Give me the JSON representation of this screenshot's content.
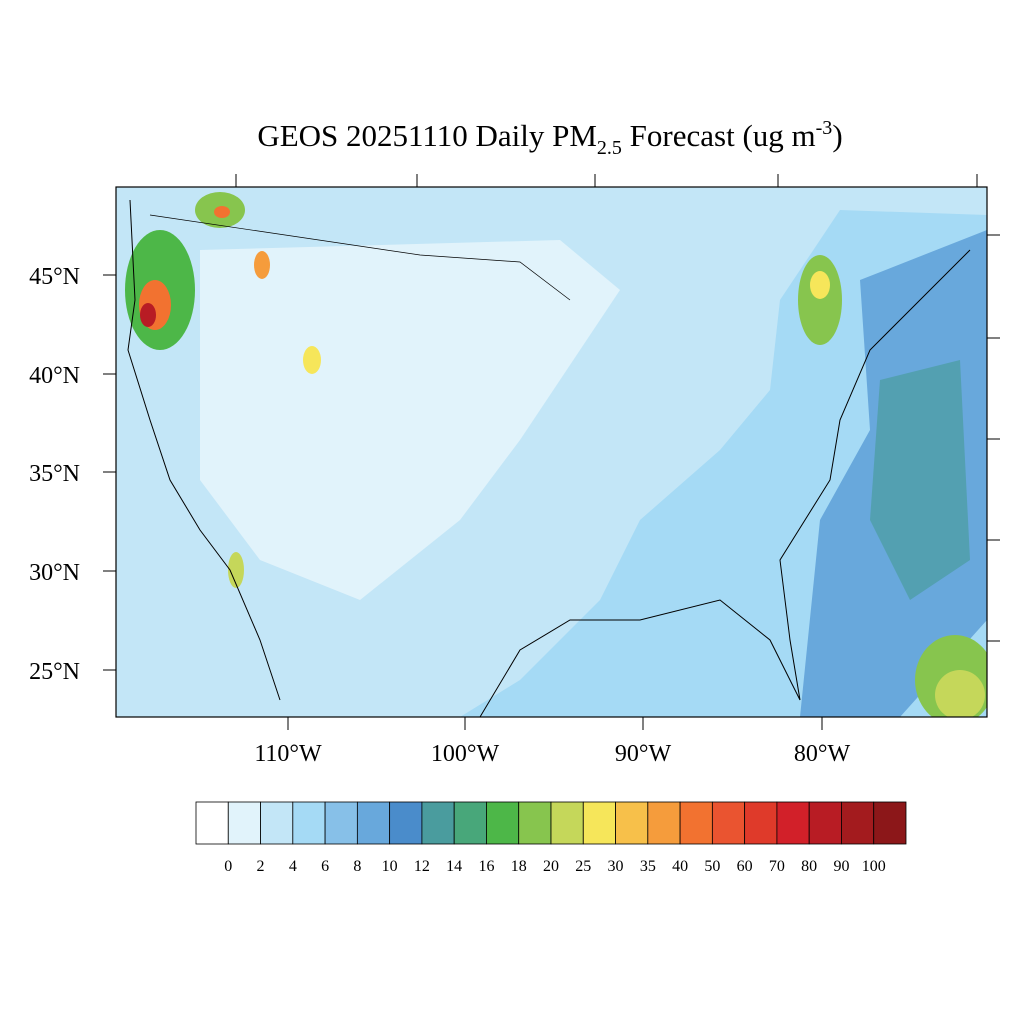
{
  "title": {
    "main": "GEOS 20251110 Daily PM",
    "sub": "2.5",
    "rest": " Forecast (ug m",
    "sup": "-3",
    "end": ")"
  },
  "lat_labels": [
    "45°N",
    "40°N",
    "35°N",
    "30°N",
    "25°N"
  ],
  "lon_labels": [
    "110°W",
    "100°W",
    "90°W",
    "80°W"
  ],
  "colorbar": {
    "colors": [
      "#ffffff",
      "#e1f3fb",
      "#c3e6f7",
      "#a5daf5",
      "#87c0e8",
      "#68a8dc",
      "#4a8ccb",
      "#4a9c9e",
      "#48a77a",
      "#4db748",
      "#87c54e",
      "#c5d75a",
      "#f6e65a",
      "#f7c04a",
      "#f59c3c",
      "#f27230",
      "#ea5430",
      "#df3a2a",
      "#d22029",
      "#b81c24",
      "#a31b1e",
      "#8c1719"
    ],
    "levels": [
      0,
      2,
      4,
      6,
      8,
      10,
      12,
      14,
      16,
      18,
      20,
      25,
      30,
      35,
      40,
      50,
      60,
      70,
      80,
      90,
      100
    ]
  }
}
